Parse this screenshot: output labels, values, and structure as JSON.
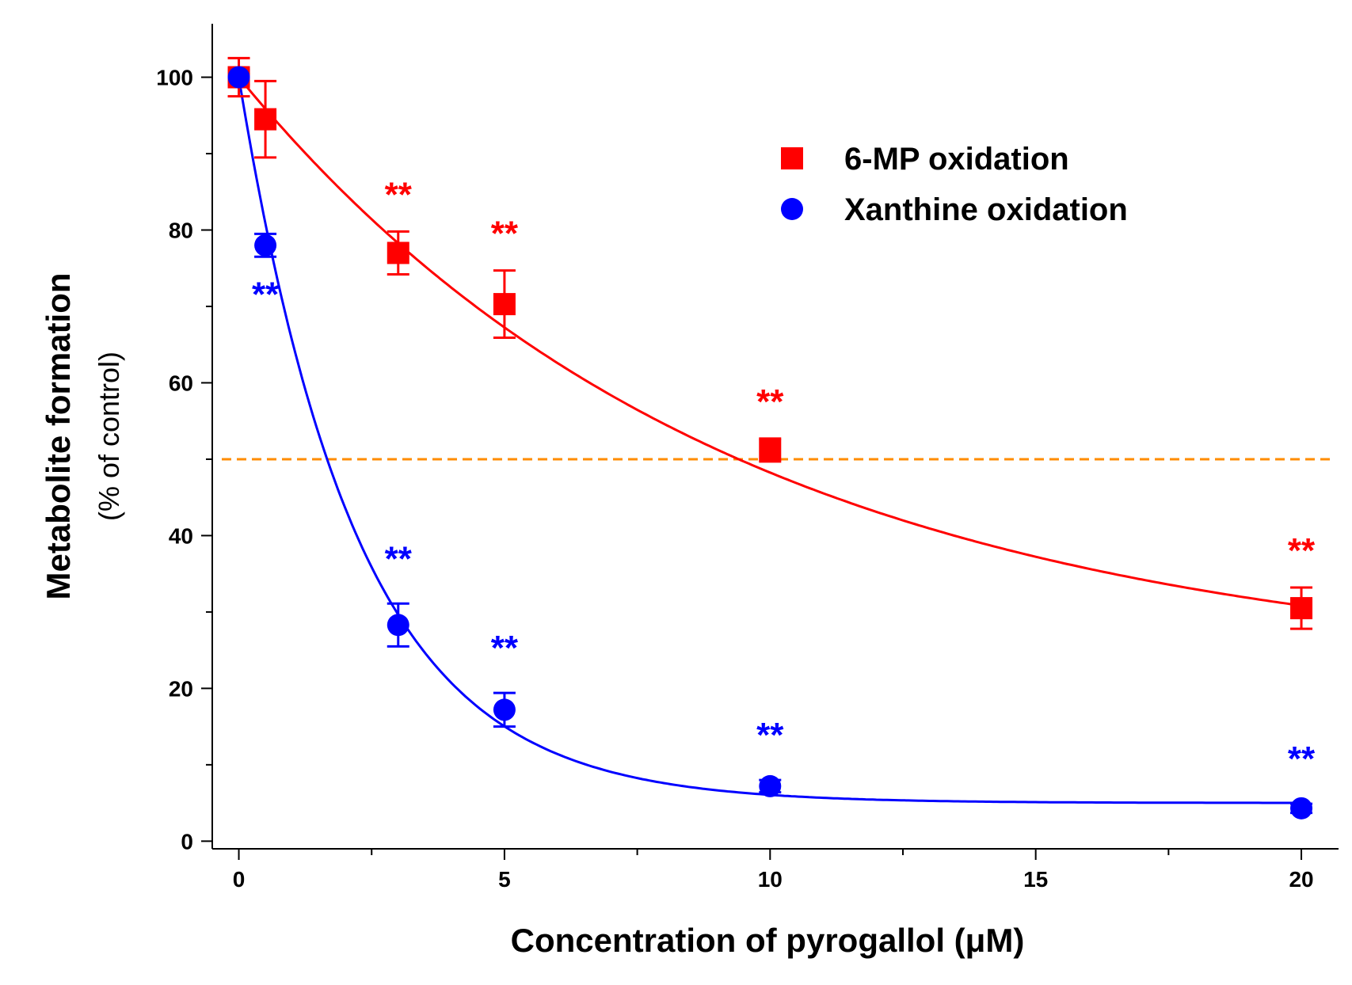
{
  "chart_data": {
    "type": "scatter",
    "title": "",
    "xlabel": "Concentration of pyrogallol (μM)",
    "ylabel": "Metabolite formation",
    "ylabel_sub": "(% of control)",
    "xlim": [
      -0.5,
      20.7
    ],
    "ylim": [
      -1,
      107
    ],
    "x_ticks": [
      0,
      5,
      10,
      15,
      20
    ],
    "x_tick_labels": [
      "0",
      "5",
      "10",
      "15",
      "20"
    ],
    "y_ticks": [
      0,
      20,
      40,
      60,
      80,
      100
    ],
    "y_tick_labels": [
      "0",
      "20",
      "40",
      "60",
      "80",
      "100"
    ],
    "grid": false,
    "legend_position": "top-right",
    "reference_line": {
      "y": 50,
      "color": "#FF8C00",
      "style": "dashed"
    },
    "series": [
      {
        "name": "6-MP oxidation",
        "marker": "square",
        "color": "#FF0000",
        "x": [
          0,
          0.5,
          3,
          5,
          10,
          20
        ],
        "y": [
          100,
          94.5,
          77,
          70.3,
          51.2,
          30.5
        ],
        "error": [
          2.5,
          5,
          2.8,
          4.4,
          1.5,
          2.7
        ],
        "significance": [
          "",
          "",
          "**",
          "**",
          "**",
          "**"
        ],
        "fit": {
          "model": "exponential_decay",
          "y0": 100,
          "plateau": 22.0,
          "k": 0.1089
        }
      },
      {
        "name": "Xanthine oxidation",
        "marker": "circle",
        "color": "#0000FF",
        "x": [
          0,
          0.5,
          3,
          5,
          10,
          20
        ],
        "y": [
          100,
          78,
          28.3,
          17.2,
          7.2,
          4.3
        ],
        "error": [
          1,
          1.5,
          2.8,
          2.2,
          0.8,
          0.6
        ],
        "significance": [
          "",
          "**",
          "**",
          "**",
          "**",
          "**"
        ],
        "fit": {
          "model": "exponential_decay",
          "y0": 100,
          "plateau": 5.0,
          "k": 0.4497
        }
      }
    ],
    "significance_label": "**"
  }
}
